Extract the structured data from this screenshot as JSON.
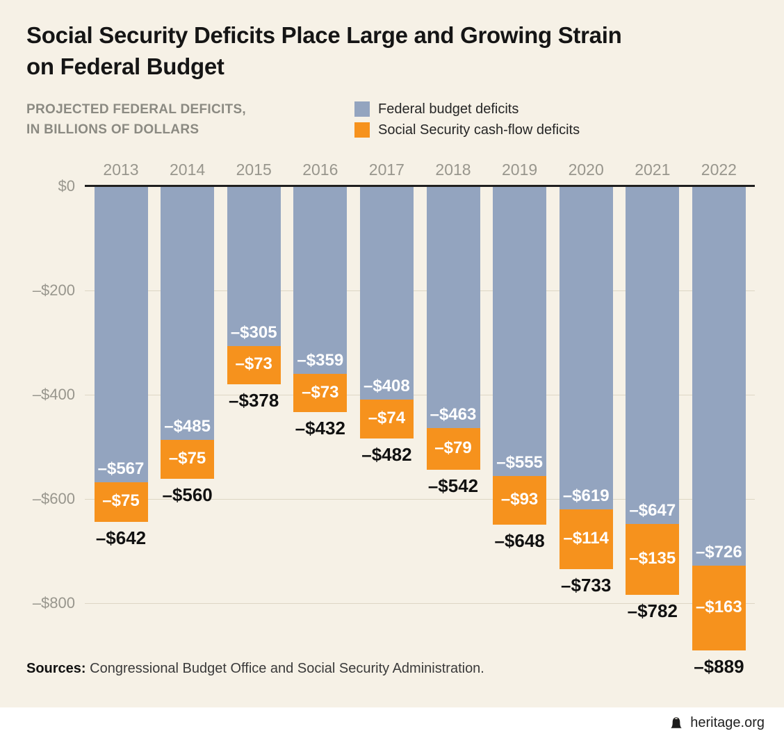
{
  "title": {
    "line1": "Social Security Deficits Place Large and Growing Strain",
    "line2": "on Federal Budget"
  },
  "subtitle": {
    "line1": "PROJECTED FEDERAL DEFICITS,",
    "line2": "IN BILLIONS OF DOLLARS"
  },
  "legend": [
    {
      "label": "Federal budget deficits",
      "color": "#93a4bf"
    },
    {
      "label": "Social Security cash-flow deficits",
      "color": "#f6921d"
    }
  ],
  "chart_data": {
    "type": "bar",
    "stacked": true,
    "title": "Social Security Deficits Place Large and Growing Strain on Federal Budget",
    "ylabel": "PROJECTED FEDERAL DEFICITS, IN BILLIONS OF DOLLARS",
    "grid": true,
    "legend_position": "top",
    "categories": [
      "2013",
      "2014",
      "2015",
      "2016",
      "2017",
      "2018",
      "2019",
      "2020",
      "2021",
      "2022"
    ],
    "series": [
      {
        "name": "Federal budget deficits",
        "color": "#93a4bf",
        "values": [
          -567,
          -485,
          -305,
          -359,
          -408,
          -463,
          -555,
          -619,
          -647,
          -726
        ],
        "labels": [
          "–$567",
          "–$485",
          "–$305",
          "–$359",
          "–$408",
          "–$463",
          "–$555",
          "–$619",
          "–$647",
          "–$726"
        ]
      },
      {
        "name": "Social Security cash-flow deficits",
        "color": "#f6921d",
        "values": [
          -75,
          -75,
          -73,
          -73,
          -74,
          -79,
          -93,
          -114,
          -135,
          -163
        ],
        "labels": [
          "–$75",
          "–$75",
          "–$73",
          "–$73",
          "–$74",
          "–$79",
          "–$93",
          "–$114",
          "–$135",
          "–$163"
        ]
      }
    ],
    "totals": [
      -642,
      -560,
      -378,
      -432,
      -482,
      -542,
      -648,
      -733,
      -782,
      -889
    ],
    "total_labels": [
      "–$642",
      "–$560",
      "–$378",
      "–$432",
      "–$482",
      "–$542",
      "–$648",
      "–$733",
      "–$782",
      "–$889"
    ],
    "y_axis": {
      "tick_labels": [
        "$0",
        "–$200",
        "–$400",
        "–$600",
        "–$800"
      ],
      "tick_values": [
        0,
        -200,
        -400,
        -600,
        -800
      ],
      "range": [
        0,
        -900
      ]
    }
  },
  "source": {
    "bold": "Sources:",
    "text": " Congressional Budget Office and Social Security Administration."
  },
  "footer": {
    "brand": "heritage.org"
  }
}
